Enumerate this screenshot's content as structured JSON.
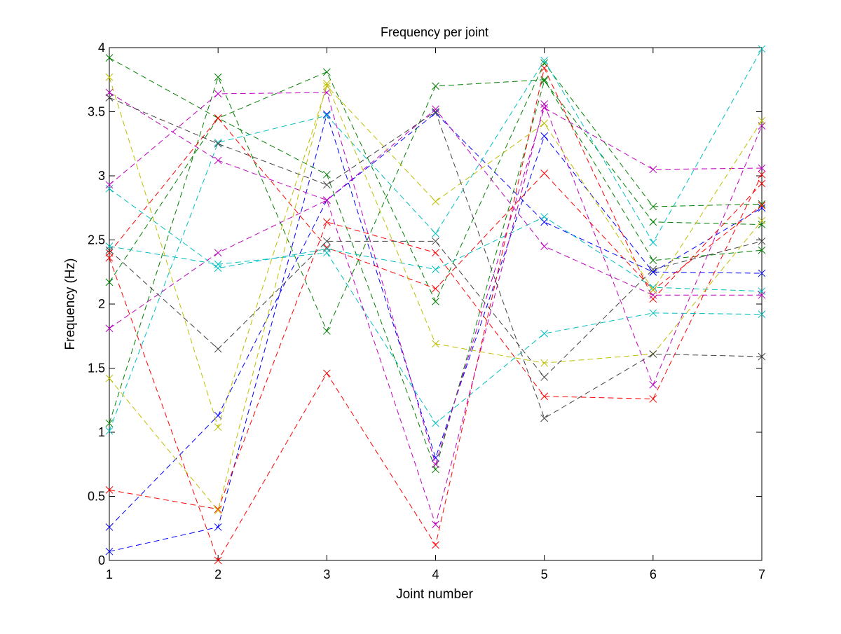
{
  "chart_data": {
    "type": "line",
    "title": "Frequency per joint",
    "xlabel": "Joint number",
    "ylabel": "Frequency (Hz)",
    "xlim": [
      1,
      7
    ],
    "ylim": [
      0,
      4
    ],
    "x": [
      1,
      2,
      3,
      4,
      5,
      6,
      7
    ],
    "x_ticks": [
      "1",
      "2",
      "3",
      "4",
      "5",
      "6",
      "7"
    ],
    "y_ticks": [
      "0",
      "0.5",
      "1",
      "1.5",
      "2",
      "2.5",
      "3",
      "3.5",
      "4"
    ],
    "grid": false,
    "legend": "none",
    "line_style": "dashed",
    "marker": "x",
    "series": [
      {
        "color": "#0000ff",
        "values": [
          0.26,
          1.13,
          2.81,
          3.49,
          2.64,
          2.25,
          2.24
        ]
      },
      {
        "color": "#0000ff",
        "values": [
          0.07,
          0.26,
          3.48,
          0.8,
          3.31,
          2.25,
          2.75
        ]
      },
      {
        "color": "#008000",
        "values": [
          3.92,
          3.45,
          3.81,
          2.02,
          3.88,
          2.76,
          2.78
        ]
      },
      {
        "color": "#008000",
        "values": [
          1.07,
          3.77,
          1.79,
          3.7,
          3.75,
          2.34,
          2.42
        ]
      },
      {
        "color": "#008000",
        "values": [
          2.17,
          3.45,
          3.01,
          0.71,
          3.74,
          2.64,
          2.62
        ]
      },
      {
        "color": "#ff0000",
        "values": [
          2.36,
          0.0,
          1.46,
          0.12,
          3.84,
          2.04,
          2.94
        ]
      },
      {
        "color": "#ff0000",
        "values": [
          0.55,
          0.4,
          2.64,
          2.4,
          1.28,
          1.26,
          3.01
        ]
      },
      {
        "color": "#ff0000",
        "values": [
          2.4,
          3.45,
          2.44,
          2.12,
          3.02,
          2.11,
          2.77
        ]
      },
      {
        "color": "#00bfbf",
        "values": [
          2.45,
          2.31,
          2.4,
          1.07,
          1.77,
          1.93,
          1.92
        ]
      },
      {
        "color": "#00bfbf",
        "values": [
          2.9,
          2.28,
          2.43,
          2.27,
          2.68,
          2.13,
          2.1
        ]
      },
      {
        "color": "#00bfbf",
        "values": [
          1.01,
          3.26,
          3.47,
          2.55,
          3.9,
          2.48,
          3.99
        ]
      },
      {
        "color": "#bf00bf",
        "values": [
          1.81,
          2.4,
          2.81,
          3.52,
          2.45,
          2.07,
          2.07
        ]
      },
      {
        "color": "#bf00bf",
        "values": [
          3.65,
          3.12,
          2.81,
          0.28,
          3.56,
          1.37,
          3.39
        ]
      },
      {
        "color": "#bf00bf",
        "values": [
          2.93,
          3.64,
          3.65,
          0.75,
          3.53,
          3.05,
          3.06
        ]
      },
      {
        "color": "#bfbf00",
        "values": [
          3.77,
          1.04,
          3.7,
          2.8,
          3.41,
          2.11,
          3.43
        ]
      },
      {
        "color": "#bfbf00",
        "values": [
          1.42,
          0.39,
          3.72,
          1.69,
          1.54,
          1.61,
          2.65
        ]
      },
      {
        "color": "#404040",
        "values": [
          2.42,
          1.65,
          2.49,
          2.49,
          1.43,
          2.27,
          2.49
        ]
      },
      {
        "color": "#404040",
        "values": [
          3.61,
          3.25,
          2.93,
          3.5,
          1.11,
          1.61,
          1.59
        ]
      }
    ]
  }
}
